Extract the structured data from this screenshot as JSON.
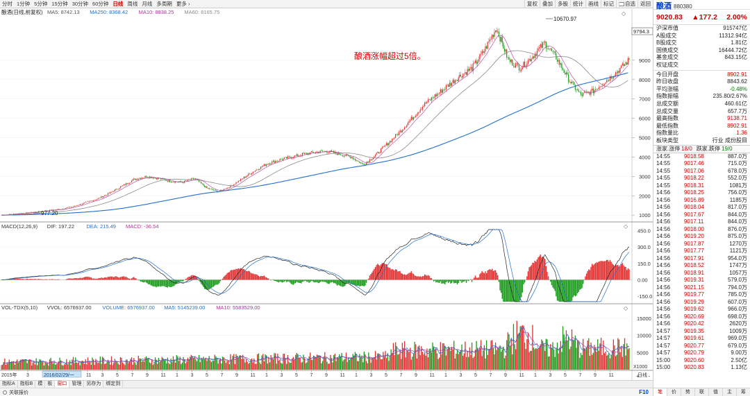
{
  "toolbar": {
    "periods": [
      {
        "label": "分时",
        "active": false
      },
      {
        "label": "1分钟",
        "active": false
      },
      {
        "label": "5分钟",
        "active": false
      },
      {
        "label": "15分钟",
        "active": false
      },
      {
        "label": "30分钟",
        "active": false
      },
      {
        "label": "60分钟",
        "active": false
      },
      {
        "label": "日线",
        "active": true
      },
      {
        "label": "周线",
        "active": false
      },
      {
        "label": "月线",
        "active": false
      },
      {
        "label": "多周期",
        "active": false
      },
      {
        "label": "更多 ›",
        "active": false
      }
    ],
    "tools": [
      "复权",
      "叠加",
      "多股",
      "统计",
      "画线",
      "标记",
      "自选",
      "返回"
    ]
  },
  "main_chart": {
    "title": "酿酒(日线,前复权)",
    "indicators": [
      {
        "label": "MA5: 8742.13",
        "color": "#555555"
      },
      {
        "label": "MA250: 8368.42",
        "color": "#1f6fd0"
      },
      {
        "label": "MA10: 8838.25",
        "color": "#b0339a"
      },
      {
        "label": "MA60: 8165.75",
        "color": "#8a8a8a"
      }
    ],
    "annotation": "酿酒涨幅超过5倍。",
    "high_label": "10670.97",
    "low_label": "977.20",
    "current_label": "9794.3",
    "y_ticks": [
      "9000",
      "8000",
      "7000",
      "6000",
      "5000",
      "4000",
      "3000",
      "2000",
      "1000"
    ]
  },
  "macd_chart": {
    "indicators": [
      {
        "label": "MACD(12,26,9)",
        "color": "#333333"
      },
      {
        "label": "DIF: 197.22",
        "color": "#333333"
      },
      {
        "label": "DEA: 215.49",
        "color": "#1f6fd0"
      },
      {
        "label": "MACD: -36.54",
        "color": "#b0339a"
      }
    ],
    "y_ticks": [
      "450.0",
      "300.0",
      "150.0",
      "0.00",
      "-150.0"
    ]
  },
  "vol_chart": {
    "indicators": [
      {
        "label": "VOL-TDX(5,10)",
        "color": "#333333"
      },
      {
        "label": "VVOL: 6576937.00",
        "color": "#333333"
      },
      {
        "label": "VOLUME: 6576937.00",
        "color": "#1f6fd0"
      },
      {
        "label": "MA5: 5145239.00",
        "color": "#1f6fd0"
      },
      {
        "label": "MA10: 5583529.00",
        "color": "#b0339a"
      }
    ],
    "y_ticks": [
      "15000",
      "10000",
      "5000"
    ],
    "unit": "X1000"
  },
  "x_axis": {
    "start_label": "2015年",
    "cursor_label": "2016/02/29/一",
    "labels": [
      "3",
      "5",
      "7",
      "9",
      "11",
      "3",
      "5",
      "7",
      "9",
      "11",
      "1",
      "3",
      "5",
      "7",
      "9",
      "11",
      "1",
      "3",
      "5",
      "7",
      "9",
      "11",
      "1",
      "3",
      "5",
      "7",
      "9",
      "11",
      "1",
      "3",
      "5",
      "7",
      "9",
      "11",
      "1",
      "3",
      "5",
      "7",
      "9",
      "11"
    ],
    "right_label": "日线",
    "zoom_in": "+",
    "zoom_out": "-"
  },
  "tabs": [
    {
      "label": "指标A",
      "active": false
    },
    {
      "label": "指标B",
      "active": false
    },
    {
      "label": "模",
      "active": false
    },
    {
      "label": "板",
      "active": false
    },
    {
      "label": "窗口",
      "active": true
    },
    {
      "label": "管理",
      "active": false
    },
    {
      "label": "另存为",
      "active": false
    },
    {
      "label": "绑定到",
      "active": false
    }
  ],
  "status": {
    "label": "关联报价",
    "f10": "F10"
  },
  "quote": {
    "name": "酿酒",
    "code": "880380",
    "price": "9020.83",
    "change": "▲177.2",
    "change_pct": "2.00%",
    "market_rows": [
      {
        "k": "沪深市值",
        "v": "915747亿",
        "c": ""
      },
      {
        "k": "A股成交",
        "v": "11312.94亿",
        "c": ""
      },
      {
        "k": "B股成交",
        "v": "1.81亿",
        "c": ""
      },
      {
        "k": "国债成交",
        "v": "16444.72亿",
        "c": ""
      },
      {
        "k": "基金成交",
        "v": "843.15亿",
        "c": ""
      },
      {
        "k": "权证成交",
        "v": "",
        "c": ""
      }
    ],
    "stat_rows": [
      {
        "k": "今日开盘",
        "v": "8902.91",
        "c": "red"
      },
      {
        "k": "昨日收盘",
        "v": "8843.62",
        "c": ""
      },
      {
        "k": "平均涨幅",
        "v": "-0.48%",
        "c": "green"
      },
      {
        "k": "指数振幅",
        "v": "235.80/2.67%",
        "c": ""
      },
      {
        "k": "总成交额",
        "v": "460.61亿",
        "c": ""
      },
      {
        "k": "总成交量",
        "v": "657.7万",
        "c": ""
      },
      {
        "k": "最高指数",
        "v": "9138.71",
        "c": "red"
      },
      {
        "k": "最低指数",
        "v": "8902.91",
        "c": "red"
      },
      {
        "k": "指数量比",
        "v": "1.36",
        "c": "red"
      },
      {
        "k": "板块类型",
        "v": "行业 成份股目",
        "c": ""
      }
    ],
    "updown": {
      "up_label": "涨家.涨停",
      "up_value": "18/0",
      "down_label": "跌家.跌停",
      "down_value": "19/0"
    },
    "ticks": [
      {
        "t": "14:55",
        "p": "9018.58",
        "q": "887.0万"
      },
      {
        "t": "14:55",
        "p": "9017.46",
        "q": "715.0万"
      },
      {
        "t": "14:55",
        "p": "9017.06",
        "q": "678.0万"
      },
      {
        "t": "14:55",
        "p": "9018.22",
        "q": "552.0万"
      },
      {
        "t": "14:55",
        "p": "9018.31",
        "q": "1081万"
      },
      {
        "t": "14:56",
        "p": "9018.25",
        "q": "756.0万"
      },
      {
        "t": "14:56",
        "p": "9016.89",
        "q": "1185万"
      },
      {
        "t": "14:56",
        "p": "9018.04",
        "q": "817.0万"
      },
      {
        "t": "14:56",
        "p": "9017.67",
        "q": "844.0万"
      },
      {
        "t": "14:56",
        "p": "9017.11",
        "q": "844.0万"
      },
      {
        "t": "14:56",
        "p": "9018.00",
        "q": "876.0万"
      },
      {
        "t": "14:56",
        "p": "9019.20",
        "q": "875.0万"
      },
      {
        "t": "14:56",
        "p": "9017.87",
        "q": "1270万"
      },
      {
        "t": "14:56",
        "p": "9017.77",
        "q": "1121万"
      },
      {
        "t": "14:56",
        "p": "9017.91",
        "q": "954.0万"
      },
      {
        "t": "14:56",
        "p": "9018.52",
        "q": "1747万"
      },
      {
        "t": "14:56",
        "p": "9018.91",
        "q": "1057万"
      },
      {
        "t": "14:56",
        "p": "9019.31",
        "q": "579.0万"
      },
      {
        "t": "14:56",
        "p": "9021.15",
        "q": "794.0万"
      },
      {
        "t": "14:56",
        "p": "9019.77",
        "q": "785.0万"
      },
      {
        "t": "14:56",
        "p": "9019.29",
        "q": "607.0万"
      },
      {
        "t": "14:56",
        "p": "9019.62",
        "q": "966.0万"
      },
      {
        "t": "14:56",
        "p": "9020.69",
        "q": "698.0万"
      },
      {
        "t": "14:56",
        "p": "9020.42",
        "q": "2620万"
      },
      {
        "t": "14:57",
        "p": "9019.35",
        "q": "1009万"
      },
      {
        "t": "14:57",
        "p": "9019.61",
        "q": "969.0万"
      },
      {
        "t": "14:57",
        "p": "9020.77",
        "q": "679.0万"
      },
      {
        "t": "14:57",
        "p": "9020.79",
        "q": "9.00万"
      },
      {
        "t": "15:00",
        "p": "9020.60",
        "q": "2.50亿"
      },
      {
        "t": "15:00",
        "p": "9020.83",
        "q": "1.13亿"
      }
    ],
    "bottom_tabs": [
      {
        "label": "笔",
        "active": true
      },
      {
        "label": "价",
        "active": false
      },
      {
        "label": "势",
        "active": false
      },
      {
        "label": "联",
        "active": false
      },
      {
        "label": "值",
        "active": false
      },
      {
        "label": "主",
        "active": false
      },
      {
        "label": "筹",
        "active": false
      }
    ]
  },
  "chart_data": {
    "type": "line",
    "series_description": "candlestick index path, daily",
    "close": [
      1000,
      1060,
      1110,
      1180,
      1250,
      1320,
      1450,
      1650,
      1850,
      2150,
      2500,
      2850,
      3000,
      2900,
      2750,
      2700,
      2900,
      2400,
      2200,
      2500,
      2900,
      3300,
      3650,
      3850,
      4000,
      4150,
      4250,
      4300,
      4150,
      4000,
      3600,
      4100,
      4700,
      5300,
      6000,
      6700,
      7200,
      7700,
      8200,
      8600,
      9500,
      10670,
      9000,
      8600,
      9200,
      9900,
      9100,
      8000,
      7200,
      7400,
      7900,
      8400,
      9020
    ],
    "ma250": [
      1000,
      1010,
      1020,
      1040,
      1060,
      1090,
      1120,
      1160,
      1210,
      1270,
      1350,
      1450,
      1560,
      1680,
      1800,
      1920,
      2040,
      2140,
      2220,
      2300,
      2380,
      2470,
      2580,
      2700,
      2830,
      2960,
      3090,
      3220,
      3350,
      3460,
      3560,
      3680,
      3800,
      3950,
      4120,
      4320,
      4540,
      4780,
      5020,
      5270,
      5550,
      5850,
      6150,
      6420,
      6700,
      7000,
      7300,
      7550,
      7750,
      7900,
      8050,
      8200,
      8368
    ],
    "ylim": [
      900,
      11000
    ],
    "macd_ylim": [
      -200,
      460
    ],
    "vol_ylim": [
      0,
      17000
    ]
  }
}
